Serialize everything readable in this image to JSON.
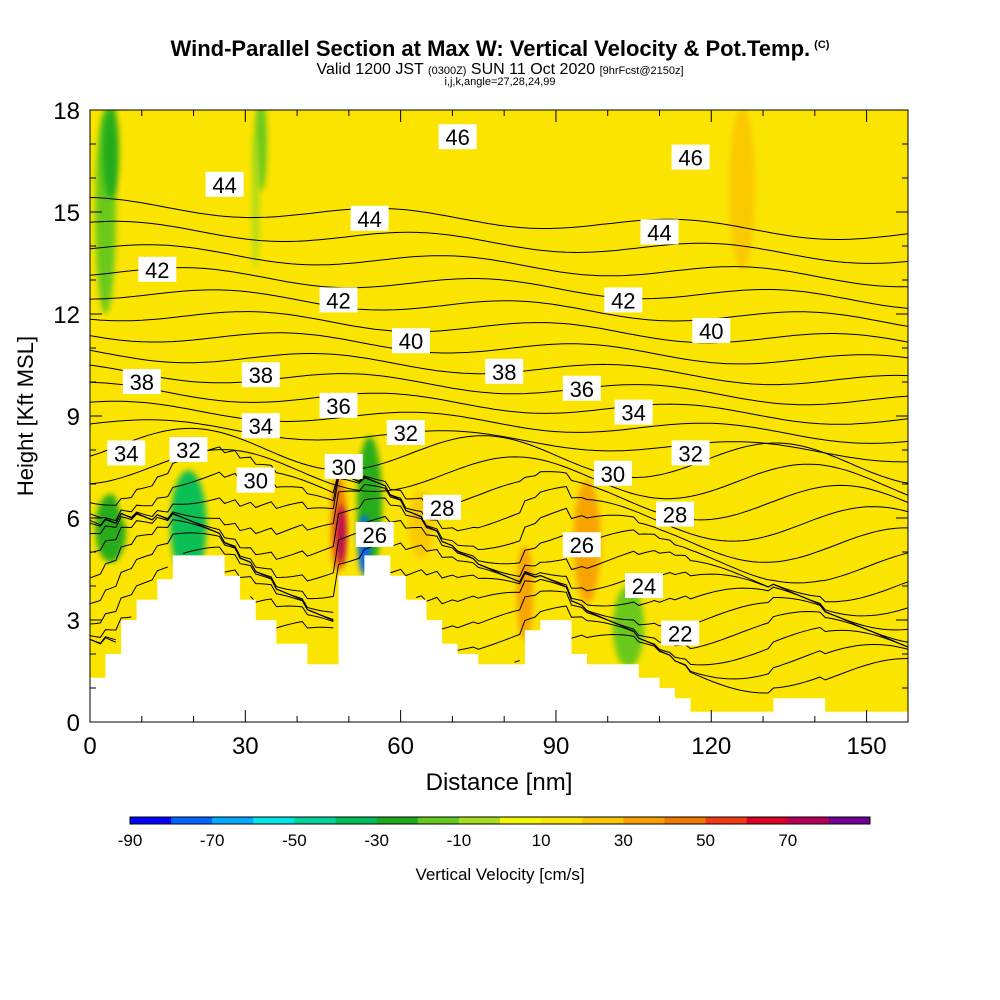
{
  "header": {
    "title": "Wind-Parallel Section at Max W: Vertical Velocity & Pot.Temp.",
    "copyright": "(C)",
    "valid_prefix": "Valid 1200 JST",
    "valid_utc": "(0300Z)",
    "valid_date": "SUN 11 Oct 2020",
    "forecast": "[9hrFcst@2150z]",
    "indices": "i,j,k,angle=27,28,24,99"
  },
  "colors": {
    "background": "#ffffff",
    "field_base": "#fbe400",
    "terrain": "#ffffff",
    "contour": "#000000"
  },
  "chart_data": {
    "type": "heatmap",
    "xlabel": "Distance [nm]",
    "ylabel": "Height [Kft MSL]",
    "xlim": [
      0,
      158
    ],
    "ylim": [
      0,
      18
    ],
    "xticks": [
      0,
      30,
      60,
      90,
      120,
      150
    ],
    "yticks": [
      0,
      3,
      6,
      9,
      12,
      15,
      18
    ],
    "grid": false,
    "colorbar": {
      "label": "Vertical Velocity [cm/s]",
      "tick_labels": [
        "-90",
        "-70",
        "-50",
        "-30",
        "-10",
        "10",
        "30",
        "50",
        "70"
      ],
      "tick_values": [
        -90,
        -70,
        -50,
        -30,
        -10,
        10,
        30,
        50,
        70
      ],
      "boundaries": [
        -90,
        -80,
        -70,
        -60,
        -50,
        -40,
        -30,
        -20,
        -10,
        0,
        10,
        20,
        30,
        40,
        50,
        60,
        70,
        80
      ],
      "colors": [
        "#0000ff",
        "#0064ff",
        "#00aaff",
        "#00e6e6",
        "#00d29b",
        "#00be5a",
        "#1eaa1e",
        "#64c81e",
        "#aadc1e",
        "#f5f500",
        "#fbe400",
        "#fac800",
        "#f8a000",
        "#f07800",
        "#f03c14",
        "#dc0028",
        "#b4005a",
        "#6e0096"
      ]
    },
    "theta_contours": {
      "levels": [
        22,
        23,
        24,
        25,
        26,
        27,
        28,
        29,
        30,
        31,
        32,
        33,
        34,
        35,
        36,
        37,
        38,
        39,
        40,
        41,
        42,
        43,
        44,
        45,
        46,
        47
      ],
      "labeled": [
        {
          "level": 46,
          "x": 71,
          "y": 17.2
        },
        {
          "level": 46,
          "x": 116,
          "y": 16.6
        },
        {
          "level": 44,
          "x": 26,
          "y": 15.8
        },
        {
          "level": 44,
          "x": 54,
          "y": 14.8
        },
        {
          "level": 44,
          "x": 110,
          "y": 14.4
        },
        {
          "level": 42,
          "x": 13,
          "y": 13.3
        },
        {
          "level": 42,
          "x": 48,
          "y": 12.4
        },
        {
          "level": 42,
          "x": 103,
          "y": 12.4
        },
        {
          "level": 40,
          "x": 62,
          "y": 11.2
        },
        {
          "level": 40,
          "x": 120,
          "y": 11.5
        },
        {
          "level": 38,
          "x": 10,
          "y": 10.0
        },
        {
          "level": 38,
          "x": 33,
          "y": 10.2
        },
        {
          "level": 38,
          "x": 80,
          "y": 10.3
        },
        {
          "level": 36,
          "x": 48,
          "y": 9.3
        },
        {
          "level": 36,
          "x": 95,
          "y": 9.8
        },
        {
          "level": 34,
          "x": 7,
          "y": 7.9
        },
        {
          "level": 34,
          "x": 33,
          "y": 8.7
        },
        {
          "level": 34,
          "x": 105,
          "y": 9.1
        },
        {
          "level": 32,
          "x": 19,
          "y": 8.0
        },
        {
          "level": 32,
          "x": 61,
          "y": 8.5
        },
        {
          "level": 32,
          "x": 116,
          "y": 7.9
        },
        {
          "level": 30,
          "x": 32,
          "y": 7.1
        },
        {
          "level": 30,
          "x": 49,
          "y": 7.5
        },
        {
          "level": 30,
          "x": 101,
          "y": 7.3
        },
        {
          "level": 28,
          "x": 68,
          "y": 6.3
        },
        {
          "level": 28,
          "x": 113,
          "y": 6.1
        },
        {
          "level": 26,
          "x": 55,
          "y": 5.5
        },
        {
          "level": 26,
          "x": 95,
          "y": 5.2
        },
        {
          "level": 24,
          "x": 107,
          "y": 4.0
        },
        {
          "level": 22,
          "x": 114,
          "y": 2.6
        }
      ]
    },
    "terrain_height": [
      [
        0,
        1.3
      ],
      [
        3,
        1.3
      ],
      [
        3,
        2.0
      ],
      [
        6,
        2.0
      ],
      [
        6,
        3.0
      ],
      [
        9,
        3.0
      ],
      [
        9,
        3.6
      ],
      [
        13,
        3.6
      ],
      [
        13,
        4.2
      ],
      [
        16,
        4.2
      ],
      [
        16,
        4.9
      ],
      [
        26,
        4.9
      ],
      [
        26,
        4.3
      ],
      [
        29,
        4.3
      ],
      [
        29,
        3.6
      ],
      [
        32,
        3.6
      ],
      [
        32,
        3.0
      ],
      [
        36,
        3.0
      ],
      [
        36,
        2.3
      ],
      [
        42,
        2.3
      ],
      [
        42,
        1.7
      ],
      [
        45,
        1.7
      ],
      [
        45,
        1.7
      ],
      [
        48,
        1.7
      ],
      [
        48,
        4.3
      ],
      [
        53,
        4.3
      ],
      [
        53,
        4.9
      ],
      [
        55,
        4.9
      ],
      [
        55,
        4.9
      ],
      [
        58,
        4.9
      ],
      [
        58,
        4.3
      ],
      [
        61,
        4.3
      ],
      [
        61,
        3.6
      ],
      [
        65,
        3.6
      ],
      [
        65,
        3.0
      ],
      [
        68,
        3.0
      ],
      [
        68,
        2.3
      ],
      [
        71,
        2.3
      ],
      [
        71,
        2.0
      ],
      [
        75,
        2.0
      ],
      [
        75,
        1.7
      ],
      [
        84,
        1.7
      ],
      [
        84,
        2.7
      ],
      [
        87,
        2.7
      ],
      [
        87,
        3.0
      ],
      [
        93,
        3.0
      ],
      [
        93,
        2.0
      ],
      [
        96,
        2.0
      ],
      [
        96,
        1.7
      ],
      [
        106,
        1.7
      ],
      [
        106,
        1.3
      ],
      [
        110,
        1.3
      ],
      [
        110,
        1.0
      ],
      [
        113,
        1.0
      ],
      [
        113,
        0.7
      ],
      [
        116,
        0.7
      ],
      [
        116,
        0.3
      ],
      [
        132,
        0.3
      ],
      [
        132,
        0.7
      ],
      [
        142,
        0.7
      ],
      [
        142,
        0.3
      ],
      [
        158,
        0.3
      ]
    ],
    "velocity_features": [
      {
        "x": 3,
        "y": 15.0,
        "rx": 2.0,
        "ry": 3.0,
        "value": -20
      },
      {
        "x": 4,
        "y": 16.8,
        "rx": 1.6,
        "ry": 1.4,
        "value": -30
      },
      {
        "x": 33,
        "y": 17.0,
        "rx": 1.2,
        "ry": 1.4,
        "value": -20
      },
      {
        "x": 32,
        "y": 15.3,
        "rx": 0.7,
        "ry": 2.0,
        "value": -10
      },
      {
        "x": 4,
        "y": 5.7,
        "rx": 3.0,
        "ry": 1.0,
        "value": -30
      },
      {
        "x": 19,
        "y": 5.8,
        "rx": 3.5,
        "ry": 1.6,
        "value": -40
      },
      {
        "x": 54,
        "y": 6.4,
        "rx": 2.4,
        "ry": 2.0,
        "value": -30
      },
      {
        "x": 53,
        "y": 5.2,
        "rx": 1.2,
        "ry": 0.9,
        "value": -80
      },
      {
        "x": 48,
        "y": 5.8,
        "rx": 1.6,
        "ry": 1.4,
        "value": 40
      },
      {
        "x": 48.5,
        "y": 5.5,
        "rx": 0.9,
        "ry": 0.9,
        "value": 75
      },
      {
        "x": 104,
        "y": 2.8,
        "rx": 3.0,
        "ry": 1.2,
        "value": -20
      },
      {
        "x": 96,
        "y": 5.3,
        "rx": 2.6,
        "ry": 1.8,
        "value": 30
      },
      {
        "x": 84,
        "y": 3.8,
        "rx": 1.6,
        "ry": 1.4,
        "value": 30
      },
      {
        "x": 64,
        "y": 5.8,
        "rx": 2.4,
        "ry": 1.0,
        "value": 20
      },
      {
        "x": 126,
        "y": 15.7,
        "rx": 2.5,
        "ry": 2.4,
        "value": 20
      },
      {
        "x": 42,
        "y": 16.0,
        "rx": 3.2,
        "ry": 2.0,
        "value": 12
      },
      {
        "x": 27,
        "y": 13.8,
        "rx": 2.4,
        "ry": 2.2,
        "value": 12
      },
      {
        "x": 76,
        "y": 14.5,
        "rx": 2.8,
        "ry": 2.5,
        "value": 12
      },
      {
        "x": 10,
        "y": 7.0,
        "rx": 5.0,
        "ry": 1.5,
        "value": 12
      },
      {
        "x": 38,
        "y": 6.0,
        "rx": 8.0,
        "ry": 1.6,
        "value": 12
      },
      {
        "x": 75,
        "y": 8.0,
        "rx": 16.0,
        "ry": 1.5,
        "value": 12
      },
      {
        "x": 130,
        "y": 6.6,
        "rx": 22.0,
        "ry": 2.2,
        "value": 12
      },
      {
        "x": 125,
        "y": 2.0,
        "rx": 12.0,
        "ry": 1.0,
        "value": 12
      },
      {
        "x": 137,
        "y": 10.8,
        "rx": 16.0,
        "ry": 1.5,
        "value": 12
      }
    ]
  }
}
